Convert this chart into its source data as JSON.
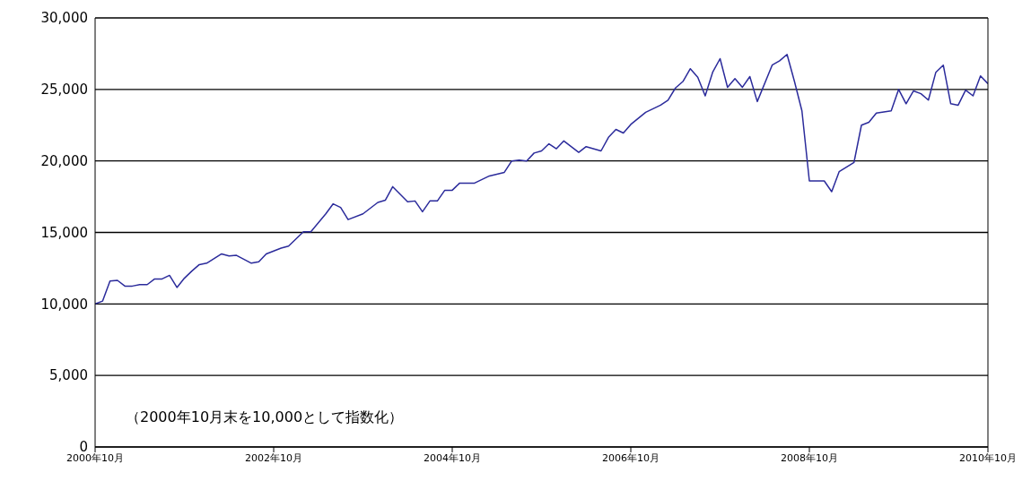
{
  "chart_data": {
    "type": "line",
    "x": [
      "2000-10",
      "2000-11",
      "2000-12",
      "2001-01",
      "2001-02",
      "2001-03",
      "2001-04",
      "2001-05",
      "2001-06",
      "2001-07",
      "2001-08",
      "2001-09",
      "2001-10",
      "2001-11",
      "2001-12",
      "2002-01",
      "2002-03",
      "2002-04",
      "2002-05",
      "2002-07",
      "2002-08",
      "2002-09",
      "2002-11",
      "2002-12",
      "2003-02",
      "2003-03",
      "2003-05",
      "2003-06",
      "2003-07",
      "2003-08",
      "2003-10",
      "2003-12",
      "2004-01",
      "2004-02",
      "2004-04",
      "2004-05",
      "2004-06",
      "2004-07",
      "2004-08",
      "2004-09",
      "2004-10",
      "2004-11",
      "2005-01",
      "2005-03",
      "2005-05",
      "2005-06",
      "2005-07",
      "2005-08",
      "2005-09",
      "2005-10",
      "2005-11",
      "2005-12",
      "2006-01",
      "2006-03",
      "2006-04",
      "2006-06",
      "2006-07",
      "2006-08",
      "2006-09",
      "2006-10",
      "2006-12",
      "2007-02",
      "2007-03",
      "2007-04",
      "2007-05",
      "2007-06",
      "2007-07",
      "2007-08",
      "2007-09",
      "2007-10",
      "2007-11",
      "2007-12",
      "2008-01",
      "2008-02",
      "2008-03",
      "2008-05",
      "2008-06",
      "2008-07",
      "2008-08",
      "2008-09",
      "2008-10",
      "2008-12",
      "2009-01",
      "2009-02",
      "2009-04",
      "2009-05",
      "2009-06",
      "2009-07",
      "2009-09",
      "2009-10",
      "2009-11",
      "2009-12",
      "2010-01",
      "2010-02",
      "2010-03",
      "2010-04",
      "2010-05",
      "2010-06",
      "2010-07",
      "2010-08",
      "2010-09",
      "2010-10"
    ],
    "series": [
      {
        "color": "#2b2b9b",
        "values": [
          10000,
          10200,
          11600,
          11650,
          11250,
          11250,
          11350,
          11350,
          11750,
          11750,
          12000,
          11150,
          11800,
          12300,
          12750,
          12850,
          13500,
          13350,
          13400,
          12850,
          12950,
          13500,
          13900,
          14050,
          15050,
          15050,
          16300,
          17000,
          16750,
          15900,
          16300,
          17100,
          17250,
          18200,
          17150,
          17200,
          16450,
          17200,
          17200,
          17950,
          17950,
          18450,
          18450,
          18950,
          19200,
          20000,
          20050,
          20000,
          20550,
          20700,
          21200,
          20850,
          21400,
          20600,
          21000,
          20700,
          21650,
          22200,
          21950,
          22550,
          23400,
          23900,
          24250,
          25100,
          25550,
          26450,
          25850,
          24550,
          26200,
          27150,
          25150,
          25750,
          25150,
          25900,
          24150,
          26700,
          27000,
          27450,
          25550,
          23500,
          18600,
          18600,
          17850,
          19250,
          19900,
          22500,
          22700,
          23350,
          23500,
          25000,
          24000,
          24900,
          24700,
          24250,
          26200,
          26700,
          24000,
          23900,
          24950,
          24550,
          25950,
          25400
        ]
      }
    ],
    "xlim": [
      "2000-10",
      "2010-10"
    ],
    "xticks": [
      {
        "value": "2000-10",
        "label": "2000年10月"
      },
      {
        "value": "2002-10",
        "label": "2002年10月"
      },
      {
        "value": "2004-10",
        "label": "2004年10月"
      },
      {
        "value": "2006-10",
        "label": "2006年10月"
      },
      {
        "value": "2008-10",
        "label": "2008年10月"
      },
      {
        "value": "2010-10",
        "label": "2010年10月"
      }
    ],
    "ylim": [
      0,
      30000
    ],
    "yticks": [
      {
        "value": 0,
        "label": "0"
      },
      {
        "value": 5000,
        "label": "5,000"
      },
      {
        "value": 10000,
        "label": "10,000"
      },
      {
        "value": 15000,
        "label": "15,000"
      },
      {
        "value": 20000,
        "label": "20,000"
      },
      {
        "value": 25000,
        "label": "25,000"
      },
      {
        "value": 30000,
        "label": "30,000"
      }
    ],
    "grid": "y",
    "marker": "none",
    "line_style": "solid",
    "annotations": [
      "（2000年10月末を10,000として指数化）"
    ]
  }
}
